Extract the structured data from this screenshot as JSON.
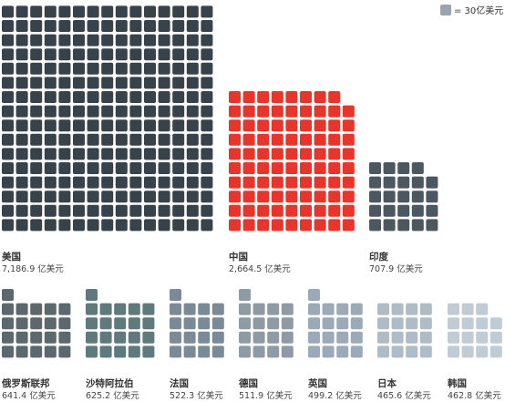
{
  "legend": {
    "label": "= 30亿美元",
    "swatch_color": "#9aa4ac"
  },
  "chart_data": {
    "type": "waffle",
    "unit_value": 30,
    "unit_label": "亿美元",
    "series": [
      {
        "name": "美国",
        "value_label": "7,186.9 亿美元",
        "value": 7186.9,
        "cells": 240,
        "color": "#37424a"
      },
      {
        "name": "中国",
        "value_label": "2,664.5 亿美元",
        "value": 2664.5,
        "cells": 89,
        "color": "#e8352b"
      },
      {
        "name": "印度",
        "value_label": "707.9 亿美元",
        "value": 707.9,
        "cells": 24,
        "color": "#4b5761"
      },
      {
        "name": "俄罗斯联邦",
        "value_label": "641.4 亿美元",
        "value": 641.4,
        "cells": 21,
        "color": "#5b696f"
      },
      {
        "name": "沙特阿拉伯",
        "value_label": "625.2 亿美元",
        "value": 625.2,
        "cells": 21,
        "color": "#5f7a7d"
      },
      {
        "name": "法国",
        "value_label": "522.3 亿美元",
        "value": 522.3,
        "cells": 17,
        "color": "#7a8a96"
      },
      {
        "name": "德国",
        "value_label": "511.9 亿美元",
        "value": 511.9,
        "cells": 17,
        "color": "#8e9ba5"
      },
      {
        "name": "英国",
        "value_label": "499.2 亿美元",
        "value": 499.2,
        "cells": 17,
        "color": "#9aaab8"
      },
      {
        "name": "日本",
        "value_label": "465.6 亿美元",
        "value": 465.6,
        "cells": 16,
        "color": "#aebcc7"
      },
      {
        "name": "韩国",
        "value_label": "462.8 亿美元",
        "value": 462.8,
        "cells": 15,
        "color": "#c0ccd5"
      }
    ]
  }
}
